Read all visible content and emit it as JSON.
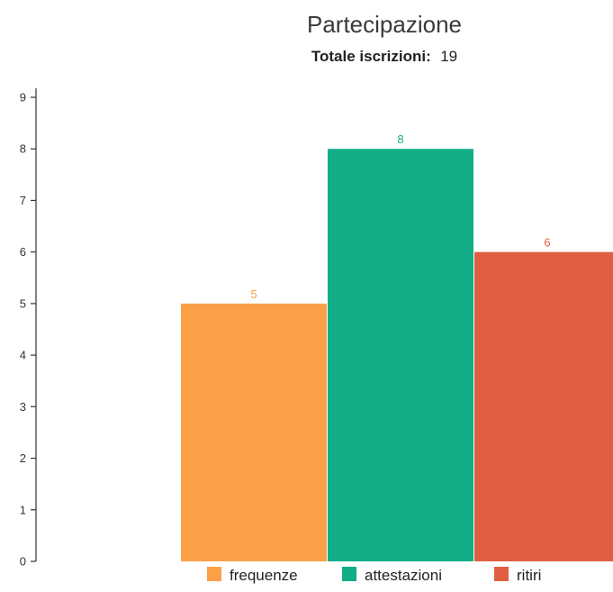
{
  "chart_data": {
    "type": "bar",
    "title": "Partecipazione",
    "subtitle": {
      "label": "Totale iscrizioni:",
      "value": "19"
    },
    "categories": [
      "frequenze",
      "attestazioni",
      "ritiri"
    ],
    "values": [
      5,
      8,
      6
    ],
    "colors": [
      "#FBA046",
      "#12AE87",
      "#E05F43"
    ],
    "ylim": [
      0,
      9
    ],
    "yticks": [
      0,
      1,
      2,
      3,
      4,
      5,
      6,
      7,
      8,
      9
    ],
    "xlabel": "",
    "ylabel": "",
    "grid": false,
    "legend": {
      "position": "bottom",
      "entries": [
        {
          "name": "frequenze",
          "color": "#FBA046"
        },
        {
          "name": "attestazioni",
          "color": "#12AE87"
        },
        {
          "name": "ritiri",
          "color": "#E05F43"
        }
      ]
    }
  }
}
